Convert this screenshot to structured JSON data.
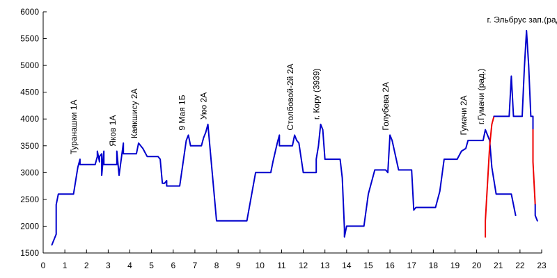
{
  "chart_data": {
    "type": "line",
    "title": "",
    "xlabel": "",
    "ylabel": "",
    "xlim": [
      0,
      23
    ],
    "ylim": [
      1500,
      6000
    ],
    "x_ticks": [
      0,
      1,
      2,
      3,
      4,
      5,
      6,
      7,
      8,
      9,
      10,
      11,
      12,
      13,
      14,
      15,
      16,
      17,
      18,
      19,
      20,
      21,
      22,
      23
    ],
    "y_ticks": [
      1500,
      2000,
      2500,
      3000,
      3500,
      4000,
      4500,
      5000,
      5500,
      6000
    ],
    "grid": false,
    "legend": "none",
    "series": [
      {
        "color": "#0000cc",
        "points": [
          [
            0.4,
            1650
          ],
          [
            0.6,
            1850
          ],
          [
            0.6,
            1900
          ],
          [
            0.6,
            1950
          ],
          [
            0.6,
            2000
          ],
          [
            0.6,
            2050
          ],
          [
            0.6,
            2100
          ],
          [
            0.6,
            2400
          ],
          [
            0.7,
            2600
          ],
          [
            1.4,
            2600
          ],
          [
            1.6,
            3100
          ],
          [
            1.7,
            3250
          ],
          [
            1.7,
            3150
          ],
          [
            2.4,
            3150
          ],
          [
            2.5,
            3300
          ],
          [
            2.5,
            3400
          ],
          [
            2.6,
            3200
          ],
          [
            2.6,
            3300
          ],
          [
            2.7,
            3350
          ],
          [
            2.7,
            2950
          ],
          [
            2.8,
            3400
          ],
          [
            2.8,
            3150
          ],
          [
            3.4,
            3150
          ],
          [
            3.4,
            3400
          ],
          [
            3.5,
            2950
          ],
          [
            3.6,
            3250
          ],
          [
            3.7,
            3550
          ],
          [
            3.7,
            3350
          ],
          [
            4.3,
            3350
          ],
          [
            4.4,
            3550
          ],
          [
            4.6,
            3450
          ],
          [
            4.8,
            3300
          ],
          [
            5.3,
            3300
          ],
          [
            5.4,
            3250
          ],
          [
            5.5,
            2800
          ],
          [
            5.6,
            2800
          ],
          [
            5.7,
            2850
          ],
          [
            5.7,
            2750
          ],
          [
            6.3,
            2750
          ],
          [
            6.6,
            3600
          ],
          [
            6.7,
            3700
          ],
          [
            6.8,
            3500
          ],
          [
            7.3,
            3500
          ],
          [
            7.4,
            3650
          ],
          [
            7.5,
            3750
          ],
          [
            7.6,
            3900
          ],
          [
            7.7,
            3450
          ],
          [
            8.0,
            2100
          ],
          [
            9.4,
            2100
          ],
          [
            9.8,
            3000
          ],
          [
            10.5,
            3000
          ],
          [
            10.6,
            3200
          ],
          [
            10.8,
            3550
          ],
          [
            10.9,
            3700
          ],
          [
            10.9,
            3500
          ],
          [
            11.5,
            3500
          ],
          [
            11.6,
            3700
          ],
          [
            11.7,
            3600
          ],
          [
            11.8,
            3550
          ],
          [
            12.0,
            3000
          ],
          [
            12.6,
            3000
          ],
          [
            12.6,
            3250
          ],
          [
            12.7,
            3500
          ],
          [
            12.8,
            3900
          ],
          [
            12.9,
            3800
          ],
          [
            13.0,
            3250
          ],
          [
            13.7,
            3250
          ],
          [
            13.8,
            2900
          ],
          [
            13.9,
            1950
          ],
          [
            13.9,
            1800
          ],
          [
            14.0,
            2000
          ],
          [
            14.8,
            2000
          ],
          [
            15.0,
            2600
          ],
          [
            15.3,
            3050
          ],
          [
            15.8,
            3050
          ],
          [
            15.9,
            3000
          ],
          [
            16.0,
            3700
          ],
          [
            16.1,
            3600
          ],
          [
            16.4,
            3050
          ],
          [
            17.0,
            3050
          ],
          [
            17.1,
            2300
          ],
          [
            17.2,
            2350
          ],
          [
            18.1,
            2350
          ],
          [
            18.3,
            2650
          ],
          [
            18.5,
            3250
          ],
          [
            19.1,
            3250
          ],
          [
            19.3,
            3400
          ],
          [
            19.5,
            3450
          ],
          [
            19.6,
            3600
          ],
          [
            20.3,
            3600
          ],
          [
            20.4,
            3800
          ],
          [
            20.6,
            3600
          ],
          [
            20.7,
            3100
          ],
          [
            20.9,
            2600
          ],
          [
            21.6,
            2600
          ],
          [
            21.8,
            2200
          ]
        ]
      },
      {
        "color": "#ee0000",
        "points": [
          [
            20.4,
            1800
          ],
          [
            20.4,
            2100
          ],
          [
            20.6,
            3500
          ],
          [
            20.7,
            3900
          ],
          [
            20.8,
            4050
          ]
        ]
      },
      {
        "color": "#0000cc",
        "points": [
          [
            20.8,
            4050
          ],
          [
            21.5,
            4050
          ],
          [
            21.6,
            4800
          ],
          [
            21.7,
            4050
          ],
          [
            22.1,
            4050
          ],
          [
            22.2,
            4950
          ],
          [
            22.3,
            5650
          ],
          [
            22.4,
            5000
          ],
          [
            22.5,
            4050
          ],
          [
            22.6,
            4050
          ],
          [
            22.6,
            3800
          ]
        ]
      },
      {
        "color": "#ee0000",
        "points": [
          [
            22.6,
            3800
          ],
          [
            22.6,
            3200
          ],
          [
            22.7,
            2400
          ]
        ]
      },
      {
        "color": "#0000cc",
        "points": [
          [
            22.7,
            2400
          ],
          [
            22.7,
            2200
          ],
          [
            22.8,
            2100
          ]
        ]
      }
    ],
    "annotations": [
      {
        "text": "Туранашки 1А",
        "x": 1.6,
        "y": 3260,
        "orientation": "vertical"
      },
      {
        "text": "Яков 1А",
        "x": 3.4,
        "y": 3410,
        "orientation": "vertical"
      },
      {
        "text": "Каякшису 2А",
        "x": 4.4,
        "y": 3560,
        "orientation": "vertical"
      },
      {
        "text": "9 Мая 1Б",
        "x": 6.6,
        "y": 3710,
        "orientation": "vertical"
      },
      {
        "text": "Укю 2А",
        "x": 7.6,
        "y": 3910,
        "orientation": "vertical"
      },
      {
        "text": "Столбовой-2й 2А",
        "x": 11.6,
        "y": 3710,
        "orientation": "vertical"
      },
      {
        "text": "г. Кору (3939)",
        "x": 12.8,
        "y": 3910,
        "orientation": "vertical"
      },
      {
        "text": "Голубева 2А",
        "x": 16.0,
        "y": 3710,
        "orientation": "vertical"
      },
      {
        "text": "Гумачи 2А",
        "x": 19.6,
        "y": 3620,
        "orientation": "vertical"
      },
      {
        "text": "г.Гумачи (рад.)",
        "x": 20.4,
        "y": 3820,
        "orientation": "vertical"
      },
      {
        "text": "г. Эльбрус зап.(рад.)",
        "x": 22.3,
        "y": 5720,
        "orientation": "horizontal"
      }
    ]
  }
}
